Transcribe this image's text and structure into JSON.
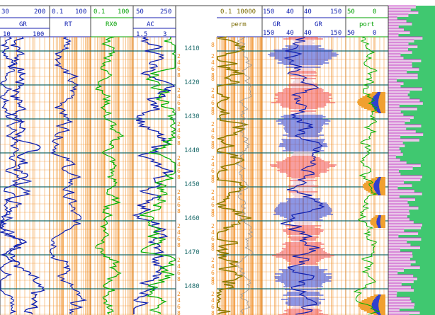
{
  "tracks_left": [
    {
      "name": "GR",
      "scale_top": [
        "30",
        "200"
      ],
      "scale_bottom": [
        "10",
        "100"
      ]
    },
    {
      "name": "RT",
      "scale_top": [
        "0.1",
        "100"
      ]
    },
    {
      "name": "RX0",
      "scale_top": [
        "0.1",
        "100"
      ]
    },
    {
      "name": "AC",
      "scale_top": [
        "50",
        "250"
      ],
      "scale_bottom": [
        "1.5",
        "3"
      ]
    }
  ],
  "tracks_right": [
    {
      "name": "perm",
      "scale_top": [
        "0.1",
        "10000"
      ]
    },
    {
      "name": "GR",
      "scale_top": [
        "150",
        "40"
      ],
      "scale_bottom": [
        "150",
        "40"
      ]
    },
    {
      "name": "GR",
      "scale_top": [
        "40",
        "150"
      ],
      "scale_bottom": [
        "40",
        "150"
      ]
    },
    {
      "name": "port",
      "scale_top": [
        "50",
        "0"
      ],
      "scale_bottom": [
        "50",
        "0"
      ]
    }
  ],
  "depth_labels": [
    "1410",
    "1420",
    "1430",
    "1440",
    "1450",
    "1460",
    "1470",
    "1480"
  ],
  "sub_ticks": [
    "2",
    "4",
    "6",
    "8"
  ],
  "colors": {
    "orange_grid": "#f08a1c",
    "depth_line": "#1a6a6a",
    "blue_curve": "#1020b0",
    "green_curve": "#00b000",
    "olive_curve": "#8a7a00",
    "red_fill": "#f05050",
    "blue_fill": "#3040d0",
    "magenta": "#c020c0",
    "lith_green": "#40c870"
  }
}
